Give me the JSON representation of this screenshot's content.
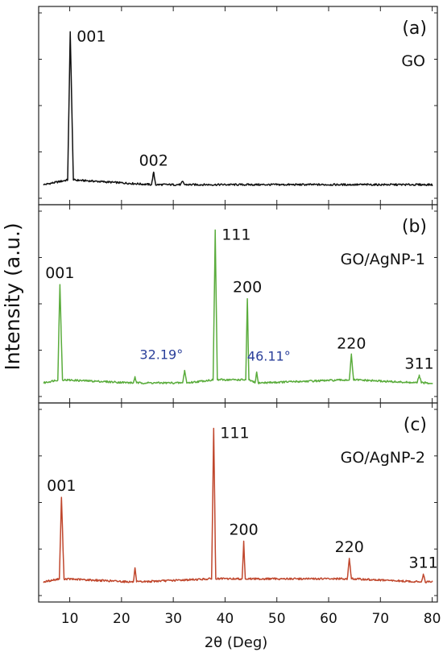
{
  "figure": {
    "ylabel": "Intensity (a.u.)",
    "xlabel": "2θ (Deg)"
  },
  "chart_data": [
    {
      "type": "line",
      "panel_label": "(a)",
      "sample": "GO",
      "color": "#111111",
      "xlim": [
        4,
        81
      ],
      "ylim": [
        0,
        1.1
      ],
      "xticks": [],
      "series": [
        {
          "points": [
            [
              5,
              0.02
            ],
            [
              9.6,
              0.05
            ],
            [
              10.1,
              1.0
            ],
            [
              10.7,
              0.05
            ],
            [
              25.8,
              0.02
            ],
            [
              26.2,
              0.1
            ],
            [
              26.6,
              0.02
            ],
            [
              31.4,
              0.02
            ],
            [
              31.8,
              0.04
            ],
            [
              32.2,
              0.02
            ],
            [
              80,
              0.02
            ]
          ]
        }
      ],
      "peaks": [
        {
          "label": "001",
          "x": 10.1
        },
        {
          "label": "002",
          "x": 26.2
        }
      ]
    },
    {
      "type": "line",
      "panel_label": "(b)",
      "sample": "GO/AgNP-1",
      "color": "#5aac3c",
      "xlim": [
        4,
        81
      ],
      "ylim": [
        0,
        1.1
      ],
      "xticks": [],
      "series": [
        {
          "points": [
            [
              5,
              0.02
            ],
            [
              7.7,
              0.04
            ],
            [
              8.1,
              0.65
            ],
            [
              8.6,
              0.04
            ],
            [
              22.3,
              0.02
            ],
            [
              22.6,
              0.06
            ],
            [
              22.9,
              0.02
            ],
            [
              31.8,
              0.02
            ],
            [
              32.19,
              0.1
            ],
            [
              32.6,
              0.02
            ],
            [
              37.7,
              0.04
            ],
            [
              38.1,
              1.0
            ],
            [
              38.5,
              0.04
            ],
            [
              44.0,
              0.04
            ],
            [
              44.3,
              0.56
            ],
            [
              44.6,
              0.04
            ],
            [
              45.8,
              0.02
            ],
            [
              46.11,
              0.09
            ],
            [
              46.4,
              0.02
            ],
            [
              64.0,
              0.04
            ],
            [
              64.4,
              0.2
            ],
            [
              64.8,
              0.04
            ],
            [
              77.1,
              0.02
            ],
            [
              77.5,
              0.07
            ],
            [
              77.9,
              0.02
            ],
            [
              80,
              0.02
            ]
          ]
        }
      ],
      "peaks": [
        {
          "label": "001",
          "x": 8.1
        },
        {
          "label": "111",
          "x": 38.1
        },
        {
          "label": "200",
          "x": 44.3
        },
        {
          "label": "220",
          "x": 64.4
        },
        {
          "label": "311",
          "x": 77.5
        }
      ],
      "annotations": [
        {
          "text": "32.19°",
          "x": 32.19
        },
        {
          "text": "46.11°",
          "x": 46.11
        }
      ]
    },
    {
      "type": "line",
      "panel_label": "(c)",
      "sample": "GO/AgNP-2",
      "color": "#c0472d",
      "xlim": [
        4,
        81
      ],
      "ylim": [
        0,
        1.1
      ],
      "xticks": [
        10,
        20,
        30,
        40,
        50,
        60,
        70,
        80
      ],
      "series": [
        {
          "points": [
            [
              5,
              0.02
            ],
            [
              8.0,
              0.04
            ],
            [
              8.4,
              0.56
            ],
            [
              8.9,
              0.04
            ],
            [
              22.3,
              0.02
            ],
            [
              22.6,
              0.11
            ],
            [
              22.9,
              0.02
            ],
            [
              37.4,
              0.04
            ],
            [
              37.8,
              1.0
            ],
            [
              38.2,
              0.04
            ],
            [
              43.3,
              0.04
            ],
            [
              43.6,
              0.28
            ],
            [
              43.9,
              0.04
            ],
            [
              63.6,
              0.04
            ],
            [
              64.0,
              0.17
            ],
            [
              64.4,
              0.04
            ],
            [
              77.9,
              0.02
            ],
            [
              78.3,
              0.07
            ],
            [
              78.7,
              0.02
            ],
            [
              80,
              0.02
            ]
          ]
        }
      ],
      "peaks": [
        {
          "label": "001",
          "x": 8.4
        },
        {
          "label": "111",
          "x": 37.8
        },
        {
          "label": "200",
          "x": 43.6
        },
        {
          "label": "220",
          "x": 64.0
        },
        {
          "label": "311",
          "x": 78.3
        }
      ]
    }
  ]
}
